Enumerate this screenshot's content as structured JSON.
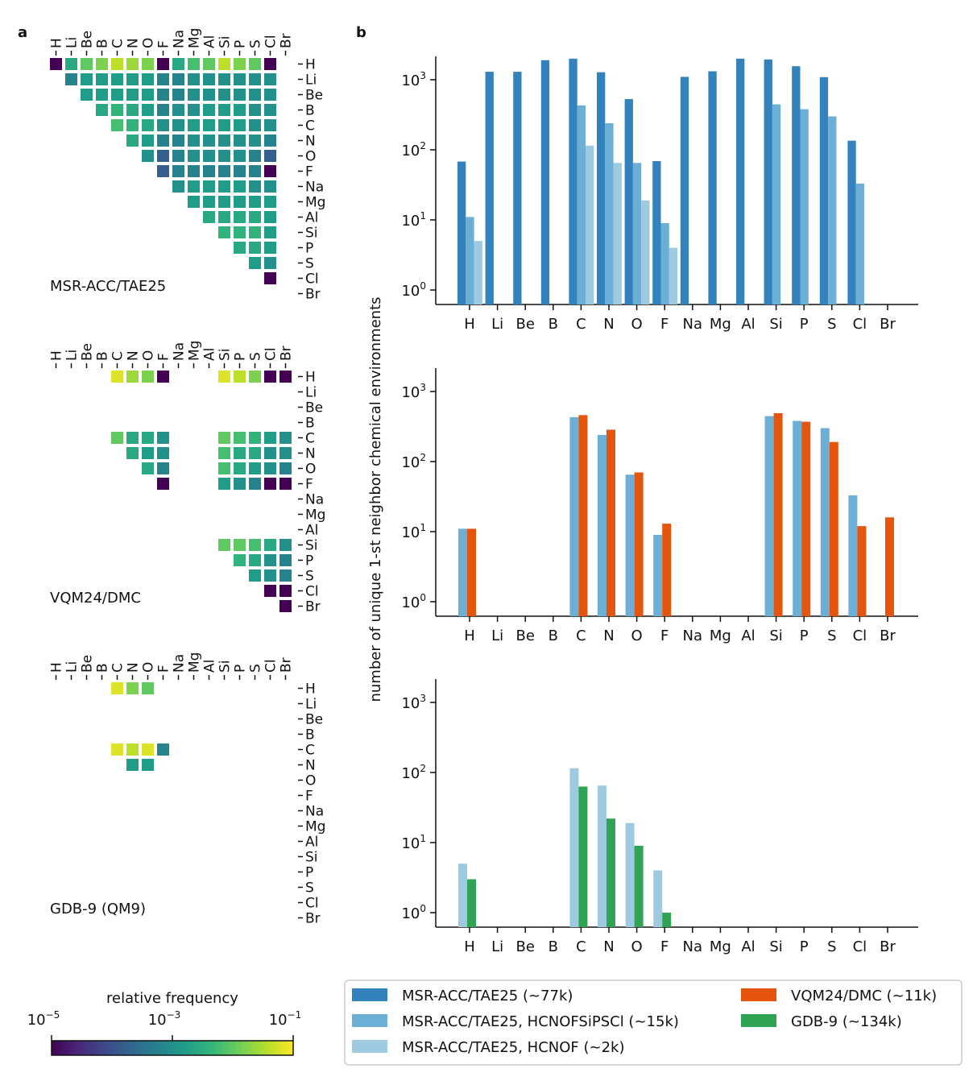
{
  "figure": {
    "panel_a_label": "a",
    "panel_b_label": "b",
    "elements": [
      "H",
      "Li",
      "Be",
      "B",
      "C",
      "N",
      "O",
      "F",
      "Na",
      "Mg",
      "Al",
      "Si",
      "P",
      "S",
      "Cl",
      "Br"
    ],
    "colorbar": {
      "title": "relative frequency",
      "tick_labels": [
        {
          "base": "10",
          "exp": "−5"
        },
        {
          "base": "10",
          "exp": "−3"
        },
        {
          "base": "10",
          "exp": "−1"
        }
      ],
      "colors": [
        "#440154",
        "#482878",
        "#3e4989",
        "#31688e",
        "#26828e",
        "#1f9e89",
        "#35b779",
        "#6ece58",
        "#b5de2b",
        "#fde725"
      ]
    }
  },
  "heatmaps": [
    {
      "label": "MSR-ACC/TAE25",
      "rows": [
        "H: 0.0 0.6 0.75 0.8 0.9 0.85 0.8 0.0 0.6 0.7 0.75 0.9 0.8 0.75 0.0",
        "Li: 0.45 0.55 0.55 0.55 0.55 0.55 0.45 0.45 0.5 0.5 0.5 0.5 0.5 0.5",
        "Be: 0.55 0.55 0.55 0.55 0.55 0.45 0.45 0.5 0.5 0.5 0.5 0.5 0.5",
        "B: 0.6 0.65 0.6 0.55 0.45 0.5 0.5 0.55 0.55 0.55 0.5 0.5",
        "C: 0.7 0.65 0.6 0.5 0.5 0.55 0.55 0.55 0.55 0.5 0.5",
        "N: 0.6 0.55 0.45 0.45 0.5 0.5 0.5 0.5 0.5 0.45",
        "O: 0.5 0.3 0.45 0.5 0.5 0.5 0.5 0.45 0.3",
        "F: 0.3 0.45 0.45 0.45 0.45 0.45 0.45 0.0",
        "Na: 0.5 0.55 0.55 0.55 0.55 0.5 0.5",
        "Mg: 0.55 0.55 0.55 0.55 0.55 0.55",
        "Al: 0.6 0.6 0.6 0.6 0.55",
        "Si: 0.65 0.65 0.65 0.55",
        "P: 0.6 0.6 0.55",
        "S: 0.55 0.5",
        "Cl: 0.0"
      ]
    },
    {
      "label": "VQM24/DMC",
      "rows": [
        "H: C 0.95 N 0.85 O 0.8 F 0.0 Si 0.95 P 0.9 S 0.8 Cl 0.0 Br 0.0",
        "C: C 0.75 N 0.6 O 0.6 F 0.5 Si 0.75 P 0.7 S 0.65 Cl 0.55 Br 0.5",
        "N: N 0.6 O 0.55 F 0.5 Si 0.7 P 0.6 S 0.6 Cl 0.5 Br 0.5",
        "O: O 0.6 F 0.45 Si 0.7 P 0.6 S 0.55 Cl 0.5 Br 0.45",
        "F: F 0.0 Si 0.55 P 0.5 S 0.45 Cl 0.0 Br 0.0",
        "Si: Si 0.75 P 0.75 S 0.7 Cl 0.6 Br 0.5",
        "P: P 0.65 S 0.6 Cl 0.5 Br 0.45",
        "S: S 0.55 Cl 0.5 Br 0.45",
        "Cl: Cl 0.0 Br 0.0",
        "Br: Br 0.0"
      ]
    },
    {
      "label": "GDB-9 (QM9)",
      "rows": [
        "H: C 0.95 N 0.8 O 0.75",
        "C: C 0.95 N 0.9 O 0.95 F 0.45",
        "N: N 0.55 O 0.55"
      ]
    }
  ],
  "chart_data": [
    {
      "type": "bar",
      "yscale": "log",
      "ylim": [
        0.5,
        2000
      ],
      "ylabel": "number of unique 1-st neighbor chemical environments",
      "y_tick_labels": [
        {
          "base": "10",
          "exp": "0",
          "value": 1
        },
        {
          "base": "10",
          "exp": "1",
          "value": 10
        },
        {
          "base": "10",
          "exp": "2",
          "value": 100
        },
        {
          "base": "10",
          "exp": "3",
          "value": 1000
        }
      ],
      "categories": [
        "H",
        "Li",
        "Be",
        "B",
        "C",
        "N",
        "O",
        "F",
        "Na",
        "Mg",
        "Al",
        "Si",
        "P",
        "S",
        "Cl",
        "Br"
      ],
      "series": [
        {
          "name": "MSR-ACC/TAE25 (~77k)",
          "color": "#3182bd",
          "values": [
            68,
            1300,
            1300,
            1900,
            2000,
            1280,
            530,
            69,
            1100,
            1320,
            2000,
            1950,
            1560,
            1090,
            135,
            null
          ]
        },
        {
          "name": "MSR-ACC/TAE25, HCNOFSiPSCl (~15k)",
          "color": "#6baed6",
          "values": [
            11,
            null,
            null,
            null,
            430,
            240,
            65,
            9,
            null,
            null,
            null,
            445,
            380,
            300,
            33,
            null
          ]
        },
        {
          "name": "MSR-ACC/TAE25, HCNOF (~2k)",
          "color": "#9ecae1",
          "values": [
            5,
            null,
            null,
            null,
            115,
            65,
            19,
            4,
            null,
            null,
            null,
            null,
            null,
            null,
            null,
            null
          ]
        }
      ]
    },
    {
      "type": "bar",
      "yscale": "log",
      "ylim": [
        0.5,
        2000
      ],
      "categories": [
        "H",
        "Li",
        "Be",
        "B",
        "C",
        "N",
        "O",
        "F",
        "Na",
        "Mg",
        "Al",
        "Si",
        "P",
        "S",
        "Cl",
        "Br"
      ],
      "series": [
        {
          "name": "MSR-ACC/TAE25, HCNOFSiPSCl (~15k)",
          "color": "#6baed6",
          "values": [
            11,
            null,
            null,
            null,
            430,
            240,
            65,
            9,
            null,
            null,
            null,
            445,
            380,
            300,
            33,
            null
          ]
        },
        {
          "name": "VQM24/DMC (~11k)",
          "color": "#e6550d",
          "values": [
            11,
            null,
            null,
            null,
            460,
            285,
            70,
            13,
            null,
            null,
            null,
            490,
            370,
            190,
            12,
            16
          ]
        }
      ]
    },
    {
      "type": "bar",
      "yscale": "log",
      "ylim": [
        0.5,
        2000
      ],
      "categories": [
        "H",
        "Li",
        "Be",
        "B",
        "C",
        "N",
        "O",
        "F",
        "Na",
        "Mg",
        "Al",
        "Si",
        "P",
        "S",
        "Cl",
        "Br"
      ],
      "series": [
        {
          "name": "MSR-ACC/TAE25, HCNOF (~2k)",
          "color": "#9ecae1",
          "values": [
            5,
            null,
            null,
            null,
            115,
            65,
            19,
            4,
            null,
            null,
            null,
            null,
            null,
            null,
            null,
            null
          ]
        },
        {
          "name": "GDB-9 (~134k)",
          "color": "#31a354",
          "values": [
            3,
            null,
            null,
            null,
            63,
            22,
            9,
            1,
            null,
            null,
            null,
            null,
            null,
            null,
            null,
            null
          ]
        }
      ]
    }
  ],
  "legend": {
    "entries": [
      {
        "label": "MSR-ACC/TAE25 (~77k)",
        "color": "#3182bd"
      },
      {
        "label": "MSR-ACC/TAE25, HCNOFSiPSCl (~15k)",
        "color": "#6baed6"
      },
      {
        "label": "MSR-ACC/TAE25, HCNOF (~2k)",
        "color": "#9ecae1"
      },
      {
        "label": "VQM24/DMC (~11k)",
        "color": "#e6550d"
      },
      {
        "label": "GDB-9 (~134k)",
        "color": "#31a354"
      }
    ]
  }
}
